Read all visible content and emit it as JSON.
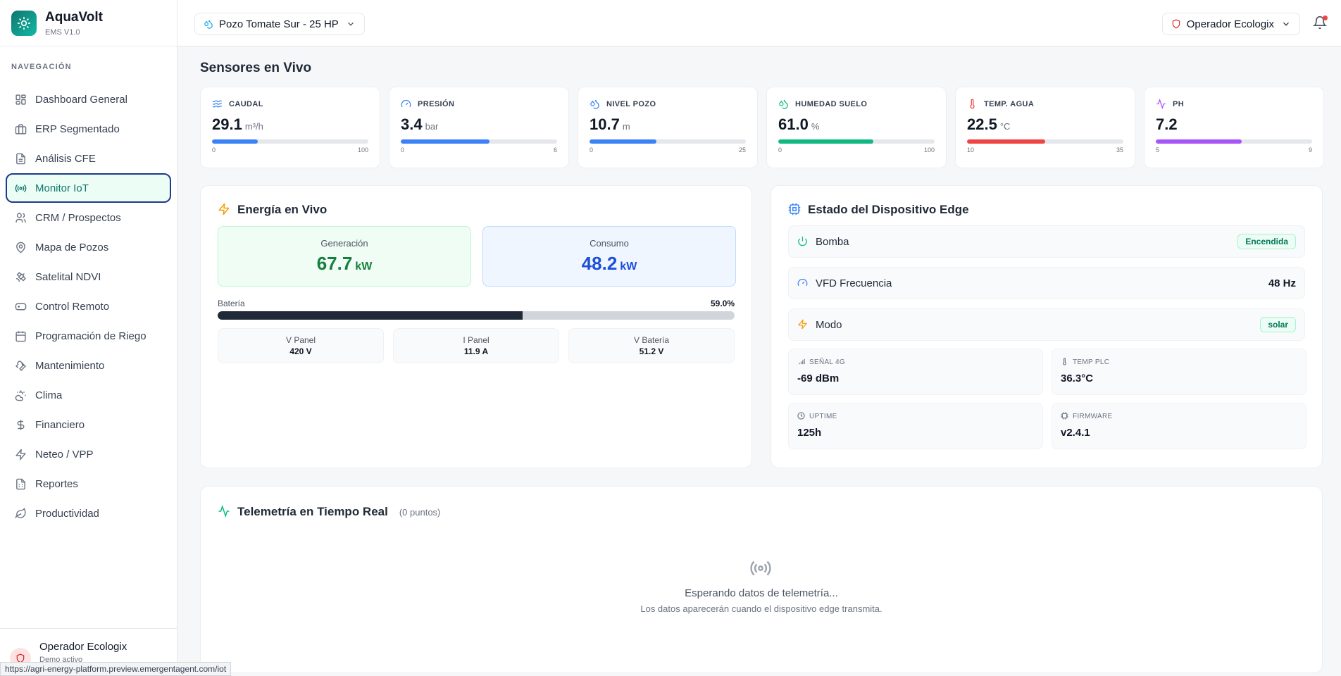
{
  "brand": {
    "name": "AquaVolt",
    "version": "EMS V1.0"
  },
  "nav": {
    "heading": "NAVEGACIÓN",
    "items": [
      {
        "label": "Dashboard General",
        "icon": "grid-icon"
      },
      {
        "label": "ERP Segmentado",
        "icon": "briefcase-icon"
      },
      {
        "label": "Análisis CFE",
        "icon": "file-icon"
      },
      {
        "label": "Monitor IoT",
        "icon": "radio-icon",
        "active": true
      },
      {
        "label": "CRM / Prospectos",
        "icon": "users-icon"
      },
      {
        "label": "Mapa de Pozos",
        "icon": "map-pin-icon"
      },
      {
        "label": "Satelital NDVI",
        "icon": "satellite-icon"
      },
      {
        "label": "Control Remoto",
        "icon": "gamepad-icon"
      },
      {
        "label": "Programación de Riego",
        "icon": "calendar-icon"
      },
      {
        "label": "Mantenimiento",
        "icon": "wrench-icon"
      },
      {
        "label": "Clima",
        "icon": "cloud-sun-icon"
      },
      {
        "label": "Financiero",
        "icon": "dollar-icon"
      },
      {
        "label": "Neteo / VPP",
        "icon": "zap-icon"
      },
      {
        "label": "Reportes",
        "icon": "report-icon"
      },
      {
        "label": "Productividad",
        "icon": "leaf-icon"
      }
    ]
  },
  "user": {
    "name": "Operador Ecologix",
    "subtitle": "Demo activo"
  },
  "status_url": "https://agri-energy-platform.preview.emergentagent.com/iot",
  "topbar": {
    "well": "Pozo Tomate Sur - 25 HP",
    "operator": "Operador Ecologix"
  },
  "sensors": {
    "title": "Sensores en Vivo",
    "cards": [
      {
        "label": "CAUDAL",
        "value": "29.1",
        "unit": "m³/h",
        "min": "0",
        "max": "100",
        "fill": 0.291,
        "color": "#3b82f6",
        "icon_color": "#3b82f6",
        "icon": "waves-icon"
      },
      {
        "label": "PRESIÓN",
        "value": "3.4",
        "unit": "bar",
        "min": "0",
        "max": "6",
        "fill": 0.567,
        "color": "#3b82f6",
        "icon_color": "#3b82f6",
        "icon": "gauge-icon"
      },
      {
        "label": "NIVEL POZO",
        "value": "10.7",
        "unit": "m",
        "min": "0",
        "max": "25",
        "fill": 0.428,
        "color": "#3b82f6",
        "icon_color": "#3b82f6",
        "icon": "droplets-icon"
      },
      {
        "label": "HUMEDAD SUELO",
        "value": "61.0",
        "unit": "%",
        "min": "0",
        "max": "100",
        "fill": 0.61,
        "color": "#10b981",
        "icon_color": "#10b981",
        "icon": "droplets-icon"
      },
      {
        "label": "TEMP. AGUA",
        "value": "22.5",
        "unit": "°C",
        "min": "10",
        "max": "35",
        "fill": 0.5,
        "color": "#ef4444",
        "icon_color": "#ef4444",
        "icon": "thermometer-icon"
      },
      {
        "label": "PH",
        "value": "7.2",
        "unit": "",
        "min": "5",
        "max": "9",
        "fill": 0.55,
        "color": "#a855f7",
        "icon_color": "#a855f7",
        "icon": "activity-icon"
      }
    ]
  },
  "energy": {
    "title": "Energía en Vivo",
    "generation": {
      "label": "Generación",
      "value": "67.7",
      "unit": "kW"
    },
    "consumption": {
      "label": "Consumo",
      "value": "48.2",
      "unit": "kW"
    },
    "battery": {
      "label": "Batería",
      "percent_text": "59.0%",
      "fill": 0.59
    },
    "stats": [
      {
        "label": "V Panel",
        "value": "420 V"
      },
      {
        "label": "I Panel",
        "value": "11.9 A"
      },
      {
        "label": "V Batería",
        "value": "51.2 V"
      }
    ]
  },
  "edge": {
    "title": "Estado del Dispositivo Edge",
    "pump": {
      "label": "Bomba",
      "status": "Encendida"
    },
    "vfd": {
      "label": "VFD Frecuencia",
      "value": "48 Hz"
    },
    "mode": {
      "label": "Modo",
      "value": "solar"
    },
    "minis": [
      {
        "label": "SEÑAL 4G",
        "value": "-69 dBm",
        "icon": "signal-icon"
      },
      {
        "label": "TEMP PLC",
        "value": "36.3°C",
        "icon": "thermometer-icon"
      },
      {
        "label": "UPTIME",
        "value": "125h",
        "icon": "clock-icon"
      },
      {
        "label": "FIRMWARE",
        "value": "v2.4.1",
        "icon": "chip-icon"
      }
    ]
  },
  "telemetry": {
    "title": "Telemetría en Tiempo Real",
    "count": "(0 puntos)",
    "empty_title": "Esperando datos de telemetría...",
    "empty_sub": "Los datos aparecerán cuando el dispositivo edge transmita."
  }
}
